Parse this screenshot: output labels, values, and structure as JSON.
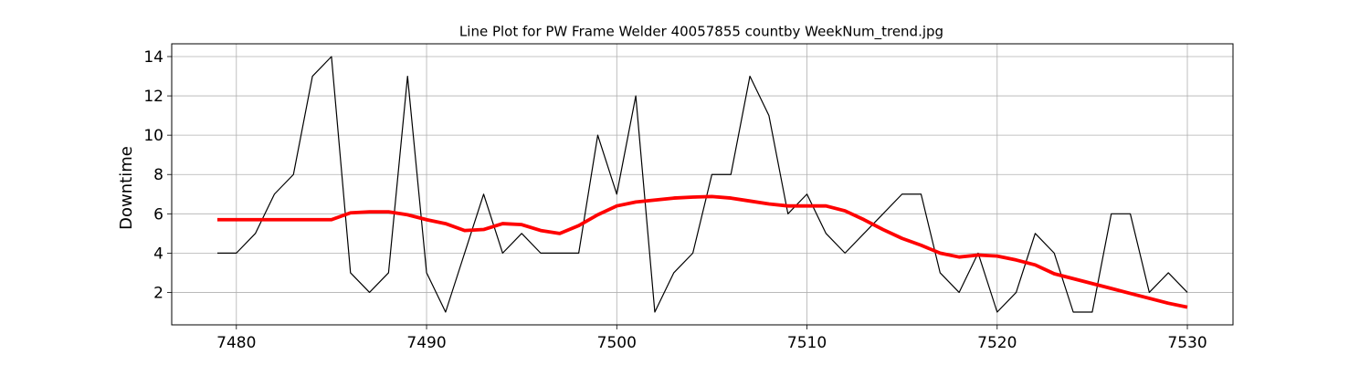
{
  "chart_data": {
    "type": "line",
    "title": "Line Plot for PW Frame Welder 40057855 countby WeekNum_trend.jpg",
    "xlabel": "",
    "ylabel": "Downtime",
    "xlim": [
      7476.6,
      7532.4
    ],
    "ylim": [
      0.35,
      14.65
    ],
    "xticks": [
      7480,
      7490,
      7500,
      7510,
      7520,
      7530
    ],
    "yticks": [
      2,
      4,
      6,
      8,
      10,
      12,
      14
    ],
    "grid": true,
    "series": [
      {
        "color": "#000000",
        "x": [
          7479,
          7480,
          7481,
          7482,
          7483,
          7484,
          7485,
          7486,
          7487,
          7488,
          7489,
          7490,
          7491,
          7492,
          7493,
          7494,
          7495,
          7496,
          7497,
          7498,
          7499,
          7500,
          7501,
          7502,
          7503,
          7504,
          7505,
          7506,
          7507,
          7508,
          7509,
          7510,
          7511,
          7512,
          7513,
          7514,
          7515,
          7516,
          7517,
          7518,
          7519,
          7520,
          7521,
          7522,
          7523,
          7524,
          7525,
          7526,
          7527,
          7528,
          7529,
          7530
        ],
        "values": [
          4,
          4,
          5,
          7,
          8,
          13,
          14,
          3,
          2,
          3,
          13,
          3,
          1,
          4,
          7,
          4,
          5,
          4,
          4,
          4,
          10,
          7,
          12,
          1,
          3,
          4,
          8,
          8,
          13,
          11,
          6,
          7,
          5,
          4,
          5,
          6,
          7,
          7,
          3,
          2,
          4,
          1,
          2,
          5,
          4,
          1,
          1,
          6,
          6,
          2,
          3,
          2
        ]
      },
      {
        "color": "#ff0000",
        "x": [
          7479,
          7480,
          7481,
          7482,
          7483,
          7484,
          7485,
          7486,
          7487,
          7488,
          7489,
          7490,
          7491,
          7492,
          7493,
          7494,
          7495,
          7496,
          7497,
          7498,
          7499,
          7500,
          7501,
          7502,
          7503,
          7504,
          7505,
          7506,
          7507,
          7508,
          7509,
          7510,
          7511,
          7512,
          7513,
          7514,
          7515,
          7516,
          7517,
          7518,
          7519,
          7520,
          7521,
          7522,
          7523,
          7524,
          7525,
          7526,
          7527,
          7528,
          7529,
          7530
        ],
        "values": [
          5.7,
          5.7,
          5.7,
          5.7,
          5.7,
          5.7,
          5.7,
          6.05,
          6.1,
          6.1,
          5.95,
          5.7,
          5.5,
          5.15,
          5.2,
          5.5,
          5.45,
          5.15,
          5.0,
          5.4,
          5.95,
          6.4,
          6.6,
          6.7,
          6.8,
          6.85,
          6.88,
          6.8,
          6.65,
          6.5,
          6.4,
          6.4,
          6.4,
          6.15,
          5.7,
          5.2,
          4.75,
          4.4,
          4.0,
          3.8,
          3.9,
          3.85,
          3.65,
          3.4,
          2.95,
          2.7,
          2.45,
          2.2,
          1.95,
          1.7,
          1.45,
          1.25
        ]
      }
    ]
  }
}
